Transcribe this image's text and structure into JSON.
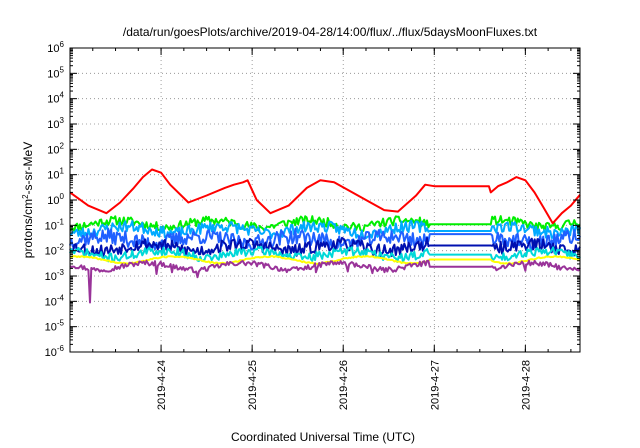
{
  "chart_data": {
    "type": "line",
    "title": "/data/run/goesPlots/archive/2019-04-28/14:00/flux/../flux/5daysMoonFluxes.txt",
    "xlabel": "Coordinated Universal Time (UTC)",
    "ylabel": {
      "base": "protons/cm",
      "sup": "2",
      "rest": "-s-sr-MeV"
    },
    "yscale": "log",
    "ylim_exp": [
      -6,
      6
    ],
    "xlim": [
      0,
      5.6
    ],
    "x_unit": "days since 2019-04-23 00:00 UTC",
    "grid": true,
    "legend": "none",
    "xticks": [
      {
        "x": 1,
        "label": "2019-4-24"
      },
      {
        "x": 2,
        "label": "2019-4-25"
      },
      {
        "x": 3,
        "label": "2019-4-26"
      },
      {
        "x": 4,
        "label": "2019-4-27"
      },
      {
        "x": 5,
        "label": "2019-4-28"
      }
    ],
    "yticks": [
      {
        "base": "10",
        "exp": "6"
      },
      {
        "base": "10",
        "exp": "5"
      },
      {
        "base": "10",
        "exp": "4"
      },
      {
        "base": "10",
        "exp": "3"
      },
      {
        "base": "10",
        "exp": "2"
      },
      {
        "base": "10",
        "exp": "1"
      },
      {
        "base": "10",
        "exp": "0"
      },
      {
        "base": "10",
        "exp": "-1"
      },
      {
        "base": "10",
        "exp": "-2"
      },
      {
        "base": "10",
        "exp": "-3"
      },
      {
        "base": "10",
        "exp": "-4"
      },
      {
        "base": "10",
        "exp": "-5"
      },
      {
        "base": "10",
        "exp": "-6"
      }
    ],
    "series": [
      {
        "color": "#ff0000",
        "x": [
          0.0,
          0.2,
          0.4,
          0.55,
          0.7,
          0.8,
          0.9,
          1.0,
          1.1,
          1.3,
          1.5,
          1.7,
          1.8,
          1.9,
          1.95,
          2.05,
          2.2,
          2.4,
          2.6,
          2.75,
          2.9,
          3.1,
          3.3,
          3.45,
          3.6,
          3.8,
          3.9,
          4.0,
          4.3,
          4.6,
          4.62,
          4.7,
          4.8,
          4.9,
          5.0,
          5.1,
          5.2,
          5.3,
          5.4,
          5.5,
          5.6
        ],
        "y": [
          2.0,
          0.6,
          0.3,
          0.8,
          3,
          8,
          16,
          12,
          4,
          0.8,
          1.5,
          3,
          4,
          5,
          6,
          1,
          0.3,
          0.6,
          3,
          6,
          5,
          2,
          0.8,
          0.4,
          0.35,
          1.5,
          4,
          3.5,
          3.5,
          3.5,
          2.0,
          3.5,
          5,
          8,
          6,
          2,
          0.5,
          0.12,
          0.3,
          0.6,
          1.6
        ]
      },
      {
        "color": "#00ee00",
        "base": 0.12,
        "var": 0.35,
        "gap": 0.11,
        "seed": 11
      },
      {
        "color": "#00aaff",
        "base": 0.07,
        "var": 0.45,
        "gap": 0.06,
        "seed": 23
      },
      {
        "color": "#2060ff",
        "base": 0.028,
        "var": 0.6,
        "gap": 0.045,
        "seed": 37
      },
      {
        "color": "#0010b0",
        "base": 0.014,
        "var": 0.5,
        "gap": 0.016,
        "seed": 53
      },
      {
        "color": "#00d8d8",
        "base": 0.0075,
        "var": 0.35,
        "gap": 0.007,
        "seed": 71
      },
      {
        "color": "#ffff00",
        "base": 0.0045,
        "var": 0.05,
        "gap": 0.0045,
        "seed": 89
      },
      {
        "color": "#993399",
        "base": 0.0025,
        "var": 0.2,
        "gap": 0.0023,
        "seed": 97,
        "spikes": [
          [
            0.22,
            9e-05
          ],
          [
            0.95,
            0.0012
          ],
          [
            1.12,
            0.0014
          ],
          [
            1.4,
            0.0009
          ],
          [
            2.7,
            0.0014
          ],
          [
            3.05,
            0.0015
          ],
          [
            3.32,
            0.0013
          ],
          [
            5.0,
            0.0016
          ]
        ]
      }
    ]
  }
}
